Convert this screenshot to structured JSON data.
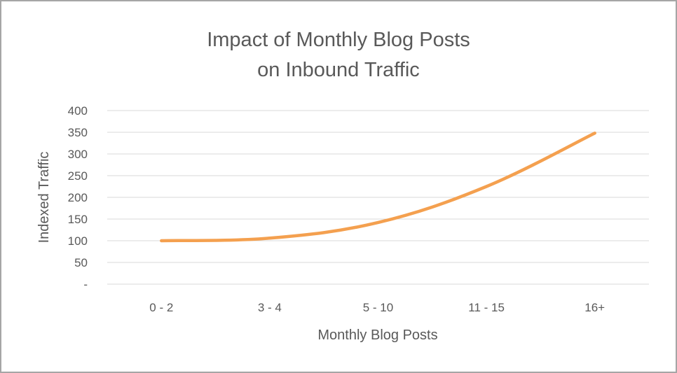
{
  "chart_data": {
    "type": "line",
    "title_lines": [
      "Impact of Monthly Blog Posts",
      "on Inbound Traffic"
    ],
    "xlabel": "Monthly Blog Posts",
    "ylabel": "Indexed Traffic",
    "categories": [
      "0 - 2",
      "3 - 4",
      "5 - 10",
      "11 - 15",
      "16+"
    ],
    "y_ticks": [
      0,
      50,
      100,
      150,
      200,
      250,
      300,
      350,
      400
    ],
    "y_tick_labels": [
      "-",
      "50",
      "100",
      "150",
      "200",
      "250",
      "300",
      "350",
      "400"
    ],
    "ylim": [
      0,
      400
    ],
    "grid": true,
    "legend": "none",
    "series": [
      {
        "values": [
          100,
          106,
          142,
          225,
          348
        ],
        "color": "#f4a04f"
      }
    ]
  }
}
